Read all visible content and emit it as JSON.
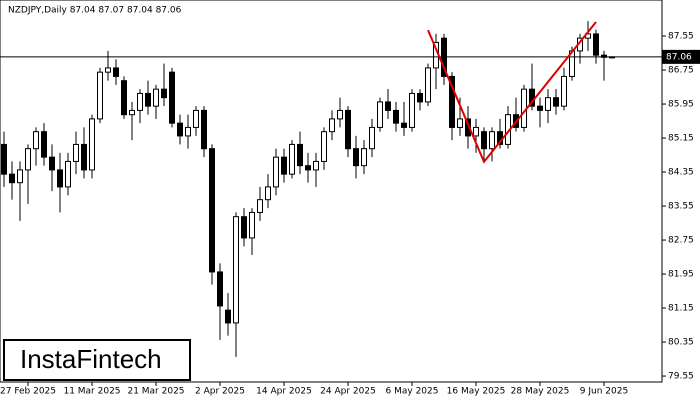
{
  "chart_data": {
    "type": "candlestick",
    "title": "NZDJPY,Daily  87.04 87.07 87.04 87.06",
    "watermark": "InstaFintech",
    "categories": [
      null,
      null,
      null,
      "27 Feb 2025",
      null,
      null,
      null,
      null,
      null,
      null,
      null,
      "11 Mar 2025",
      null,
      null,
      null,
      null,
      null,
      null,
      null,
      "21 Mar 2025",
      null,
      null,
      null,
      null,
      null,
      null,
      null,
      "2 Apr 2025",
      null,
      null,
      null,
      null,
      null,
      null,
      null,
      "14 Apr 2025",
      null,
      null,
      null,
      null,
      null,
      null,
      null,
      "24 Apr 2025",
      null,
      null,
      null,
      null,
      null,
      null,
      null,
      "6 May 2025",
      null,
      null,
      null,
      null,
      null,
      null,
      null,
      "16 May 2025",
      null,
      null,
      null,
      null,
      null,
      null,
      null,
      "28 May 2025",
      null,
      null,
      null,
      null,
      null,
      null,
      null,
      "9 Jun 2025",
      null
    ],
    "open": [
      85.0,
      84.3,
      84.1,
      84.4,
      84.9,
      85.3,
      84.7,
      84.4,
      84.0,
      84.6,
      85.0,
      84.4,
      85.6,
      86.7,
      86.8,
      86.5,
      85.7,
      85.8,
      86.2,
      85.9,
      86.3,
      86.7,
      85.5,
      85.2,
      85.4,
      85.8,
      84.9,
      82.0,
      81.1,
      80.8,
      83.3,
      82.8,
      83.4,
      83.7,
      84.0,
      84.7,
      84.3,
      85.0,
      84.5,
      84.4,
      84.6,
      85.3,
      85.6,
      85.8,
      84.9,
      84.5,
      84.9,
      85.4,
      86.0,
      85.8,
      85.5,
      85.4,
      86.2,
      86.0,
      86.8,
      87.5,
      86.6,
      85.4,
      85.6,
      85.2,
      85.3,
      84.9,
      85.3,
      85.0,
      85.7,
      85.4,
      86.3,
      85.9,
      85.8,
      86.1,
      85.9,
      86.6,
      87.2,
      87.5,
      87.6,
      87.1,
      87.04
    ],
    "high": [
      85.3,
      84.6,
      84.6,
      85.0,
      85.4,
      85.5,
      85.0,
      84.8,
      84.8,
      85.3,
      85.4,
      85.7,
      86.8,
      87.2,
      87.0,
      86.6,
      86.0,
      86.3,
      86.5,
      86.4,
      86.9,
      86.8,
      85.7,
      85.7,
      85.9,
      85.9,
      85.0,
      82.2,
      81.5,
      83.4,
      83.5,
      83.5,
      84.0,
      84.3,
      84.9,
      84.9,
      85.1,
      85.3,
      84.8,
      84.8,
      85.4,
      85.8,
      86.1,
      85.9,
      85.2,
      85.1,
      85.6,
      86.1,
      86.3,
      86.0,
      86.0,
      86.3,
      86.3,
      86.9,
      87.6,
      87.6,
      86.7,
      86.1,
      85.9,
      85.6,
      85.4,
      85.4,
      85.6,
      85.9,
      86.1,
      86.4,
      86.9,
      86.1,
      86.3,
      86.3,
      86.8,
      87.3,
      87.6,
      87.9,
      87.7,
      87.2,
      87.07
    ],
    "low": [
      84.0,
      83.7,
      83.2,
      83.6,
      84.5,
      84.5,
      83.9,
      83.4,
      83.8,
      84.3,
      84.2,
      84.2,
      85.5,
      86.5,
      86.4,
      85.6,
      85.1,
      85.5,
      85.7,
      85.6,
      85.9,
      85.4,
      85.0,
      84.9,
      85.2,
      84.7,
      81.7,
      80.4,
      80.5,
      80.0,
      82.6,
      82.4,
      83.2,
      83.5,
      83.8,
      84.1,
      84.2,
      84.3,
      84.1,
      84.0,
      84.4,
      85.1,
      85.4,
      84.7,
      84.2,
      84.3,
      84.7,
      85.3,
      85.6,
      85.3,
      85.2,
      85.3,
      85.8,
      85.9,
      86.3,
      86.4,
      85.1,
      85.2,
      84.9,
      84.8,
      84.6,
      84.6,
      84.9,
      84.9,
      85.3,
      85.3,
      85.8,
      85.4,
      85.5,
      85.7,
      85.8,
      86.5,
      86.9,
      87.2,
      86.9,
      86.5,
      87.04
    ],
    "close": [
      84.3,
      84.1,
      84.4,
      84.9,
      85.3,
      84.7,
      84.4,
      84.0,
      84.6,
      85.0,
      84.4,
      85.6,
      86.7,
      86.8,
      86.6,
      85.7,
      85.8,
      86.2,
      85.9,
      86.3,
      86.1,
      85.5,
      85.2,
      85.4,
      85.8,
      84.9,
      82.0,
      81.2,
      80.8,
      83.3,
      82.8,
      83.4,
      83.7,
      84.0,
      84.7,
      84.3,
      85.0,
      84.5,
      84.4,
      84.6,
      85.3,
      85.6,
      85.8,
      84.9,
      84.5,
      84.9,
      85.4,
      86.0,
      85.8,
      85.5,
      85.4,
      86.2,
      86.0,
      86.8,
      87.4,
      86.6,
      85.4,
      85.6,
      85.2,
      85.4,
      84.9,
      85.3,
      85.0,
      85.7,
      85.4,
      86.3,
      85.9,
      85.8,
      86.1,
      85.9,
      86.6,
      87.2,
      87.5,
      87.6,
      87.1,
      87.05,
      87.06
    ],
    "last_price": 87.06,
    "pattern": {
      "color": "#e00000",
      "index": [
        53,
        60,
        74
      ],
      "values": [
        87.69,
        84.59,
        87.88
      ]
    },
    "ylim": [
      79.41,
      88.398
    ],
    "yticks": [
      79.55,
      80.35,
      81.15,
      81.95,
      82.75,
      83.55,
      84.35,
      85.15,
      85.95,
      86.75,
      87.55
    ]
  }
}
